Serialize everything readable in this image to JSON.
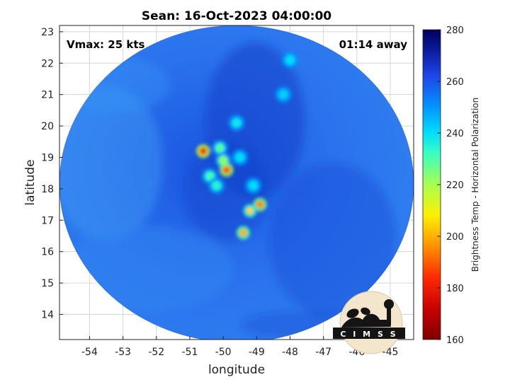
{
  "chart_data": {
    "type": "heatmap",
    "title": "Sean: 16-Oct-2023 04:00:00",
    "xlabel": "longitude",
    "ylabel": "latitude",
    "xlim": [
      -54.9,
      -44.3
    ],
    "ylim": [
      13.2,
      23.2
    ],
    "xticks": [
      -54,
      -53,
      -52,
      -51,
      -50,
      -49,
      -48,
      -47,
      -46,
      -45
    ],
    "yticks": [
      14,
      15,
      16,
      17,
      18,
      19,
      20,
      21,
      22,
      23
    ],
    "grid": true,
    "annotations": {
      "vmax": "Vmax: 25 kts",
      "time_away": "01:14 away"
    },
    "colorbar": {
      "label": "Brightness Temp - Horizontal Polarization",
      "range": [
        160,
        280
      ],
      "ticks": [
        160,
        180,
        200,
        220,
        240,
        260,
        280
      ]
    },
    "swath_center": {
      "lon": -49.6,
      "lat": 18.1
    },
    "swath_radius_deg": {
      "lon": 5.3,
      "lat": 4.9
    },
    "cold_spots": [
      {
        "lon": -50.6,
        "lat": 19.2,
        "tb": 185
      },
      {
        "lon": -50.1,
        "lat": 19.3,
        "tb": 230
      },
      {
        "lon": -50.0,
        "lat": 18.9,
        "tb": 225
      },
      {
        "lon": -49.9,
        "lat": 18.6,
        "tb": 190
      },
      {
        "lon": -50.4,
        "lat": 18.4,
        "tb": 232
      },
      {
        "lon": -50.2,
        "lat": 18.1,
        "tb": 235
      },
      {
        "lon": -48.9,
        "lat": 17.5,
        "tb": 195
      },
      {
        "lon": -49.2,
        "lat": 17.3,
        "tb": 205
      },
      {
        "lon": -49.4,
        "lat": 16.6,
        "tb": 200
      },
      {
        "lon": -49.1,
        "lat": 18.1,
        "tb": 240
      },
      {
        "lon": -49.5,
        "lat": 19.0,
        "tb": 240
      },
      {
        "lon": -48.0,
        "lat": 22.1,
        "tb": 240
      },
      {
        "lon": -48.2,
        "lat": 21.0,
        "tb": 242
      },
      {
        "lon": -49.6,
        "lat": 20.1,
        "tb": 238
      }
    ]
  },
  "logo": {
    "text": "CIMSS",
    "shown": "C I M S S"
  },
  "colors": {
    "swath_base": "#1f63e6",
    "background": "#ffffff"
  }
}
